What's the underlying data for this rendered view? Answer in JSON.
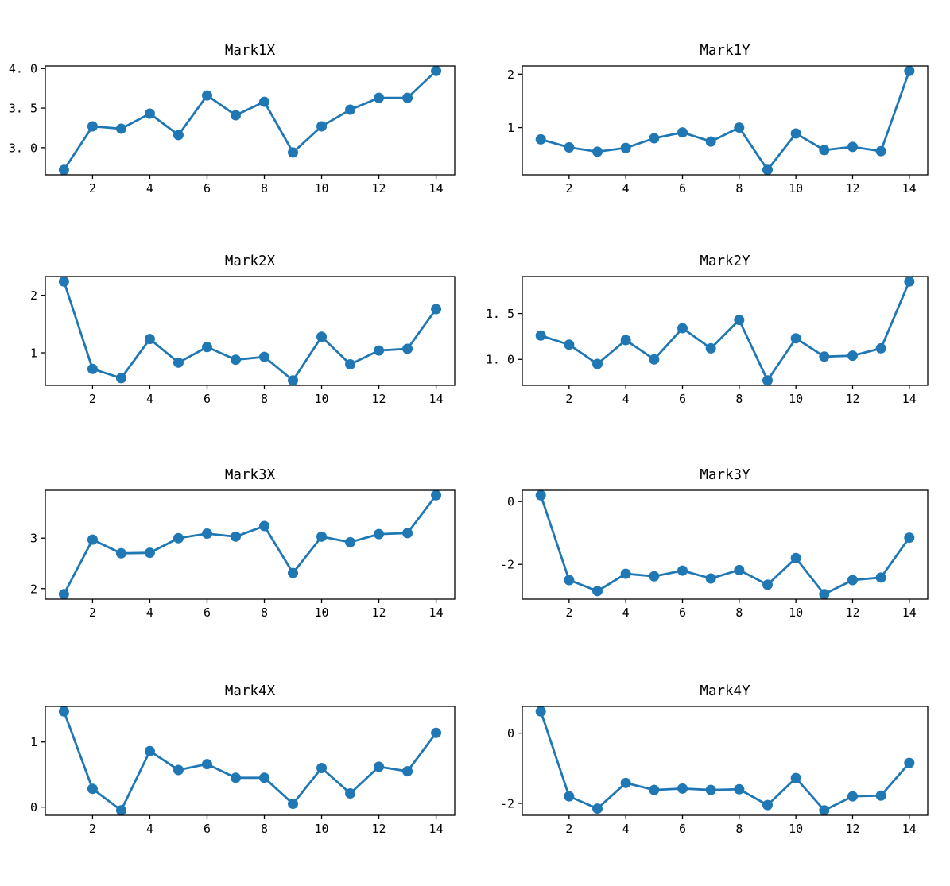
{
  "figure": {
    "background": "#ffffff",
    "series_color": "#1f77b4",
    "spine_color": "#000000"
  },
  "chart_data": [
    {
      "type": "line",
      "title": "Mark1X",
      "x": [
        1,
        2,
        3,
        4,
        5,
        6,
        7,
        8,
        9,
        10,
        11,
        12,
        13,
        14
      ],
      "values": [
        2.72,
        3.27,
        3.24,
        3.43,
        3.16,
        3.66,
        3.41,
        3.58,
        2.94,
        3.27,
        3.48,
        3.63,
        3.63,
        3.97
      ],
      "xlim": [
        0.35,
        14.65
      ],
      "ylim": [
        2.6575,
        4.0325
      ],
      "xticks": [
        2,
        4,
        6,
        8,
        10,
        12,
        14
      ],
      "xtick_labels": [
        "2",
        "4",
        "6",
        "8",
        "10",
        "12",
        "14"
      ],
      "ytick_values": [
        3.0,
        3.5,
        4.0
      ],
      "ytick_labels": [
        "3. 0",
        "3. 5",
        "4. 0"
      ],
      "grid": false,
      "legend": null
    },
    {
      "type": "line",
      "title": "Mark1Y",
      "x": [
        1,
        2,
        3,
        4,
        5,
        6,
        7,
        8,
        9,
        10,
        11,
        12,
        13,
        14
      ],
      "values": [
        0.78,
        0.63,
        0.55,
        0.62,
        0.8,
        0.91,
        0.74,
        1.0,
        0.21,
        0.89,
        0.58,
        0.64,
        0.56,
        2.06
      ],
      "xlim": [
        0.35,
        14.65
      ],
      "ylim": [
        0.1175,
        2.1525
      ],
      "xticks": [
        2,
        4,
        6,
        8,
        10,
        12,
        14
      ],
      "xtick_labels": [
        "2",
        "4",
        "6",
        "8",
        "10",
        "12",
        "14"
      ],
      "ytick_values": [
        1,
        2
      ],
      "ytick_labels": [
        "1",
        "2"
      ],
      "grid": false,
      "legend": null
    },
    {
      "type": "line",
      "title": "Mark2X",
      "x": [
        1,
        2,
        3,
        4,
        5,
        6,
        7,
        8,
        9,
        10,
        11,
        12,
        13,
        14
      ],
      "values": [
        2.24,
        0.72,
        0.56,
        1.24,
        0.83,
        1.1,
        0.88,
        0.93,
        0.52,
        1.28,
        0.8,
        1.04,
        1.07,
        1.76
      ],
      "xlim": [
        0.35,
        14.65
      ],
      "ylim": [
        0.434,
        2.326
      ],
      "xticks": [
        2,
        4,
        6,
        8,
        10,
        12,
        14
      ],
      "xtick_labels": [
        "2",
        "4",
        "6",
        "8",
        "10",
        "12",
        "14"
      ],
      "ytick_values": [
        1,
        2
      ],
      "ytick_labels": [
        "1",
        "2"
      ],
      "grid": false,
      "legend": null
    },
    {
      "type": "line",
      "title": "Mark2Y",
      "x": [
        1,
        2,
        3,
        4,
        5,
        6,
        7,
        8,
        9,
        10,
        11,
        12,
        13,
        14
      ],
      "values": [
        1.26,
        1.16,
        0.95,
        1.21,
        1.0,
        1.34,
        1.12,
        1.43,
        0.77,
        1.23,
        1.03,
        1.04,
        1.12,
        1.85
      ],
      "xlim": [
        0.35,
        14.65
      ],
      "ylim": [
        0.716,
        1.904
      ],
      "xticks": [
        2,
        4,
        6,
        8,
        10,
        12,
        14
      ],
      "xtick_labels": [
        "2",
        "4",
        "6",
        "8",
        "10",
        "12",
        "14"
      ],
      "ytick_values": [
        1.0,
        1.5
      ],
      "ytick_labels": [
        "1. 0",
        "1. 5"
      ],
      "grid": false,
      "legend": null
    },
    {
      "type": "line",
      "title": "Mark3X",
      "x": [
        1,
        2,
        3,
        4,
        5,
        6,
        7,
        8,
        9,
        10,
        11,
        12,
        13,
        14
      ],
      "values": [
        1.89,
        2.97,
        2.7,
        2.71,
        3.0,
        3.09,
        3.03,
        3.24,
        2.31,
        3.03,
        2.92,
        3.08,
        3.1,
        3.85
      ],
      "xlim": [
        0.35,
        14.65
      ],
      "ylim": [
        1.792,
        3.948
      ],
      "xticks": [
        2,
        4,
        6,
        8,
        10,
        12,
        14
      ],
      "xtick_labels": [
        "2",
        "4",
        "6",
        "8",
        "10",
        "12",
        "14"
      ],
      "ytick_values": [
        2,
        3
      ],
      "ytick_labels": [
        "2",
        "3"
      ],
      "grid": false,
      "legend": null
    },
    {
      "type": "line",
      "title": "Mark3Y",
      "x": [
        1,
        2,
        3,
        4,
        5,
        6,
        7,
        8,
        9,
        10,
        11,
        12,
        13,
        14
      ],
      "values": [
        0.2,
        -2.5,
        -2.85,
        -2.3,
        -2.38,
        -2.2,
        -2.45,
        -2.18,
        -2.65,
        -1.8,
        -2.95,
        -2.5,
        -2.42,
        -1.15
      ],
      "xlim": [
        0.35,
        14.65
      ],
      "ylim": [
        -3.1075,
        0.3575
      ],
      "xticks": [
        2,
        4,
        6,
        8,
        10,
        12,
        14
      ],
      "xtick_labels": [
        "2",
        "4",
        "6",
        "8",
        "10",
        "12",
        "14"
      ],
      "ytick_values": [
        -2,
        0
      ],
      "ytick_labels": [
        "-2",
        "0"
      ],
      "grid": false,
      "legend": null
    },
    {
      "type": "line",
      "title": "Mark4X",
      "x": [
        1,
        2,
        3,
        4,
        5,
        6,
        7,
        8,
        9,
        10,
        11,
        12,
        13,
        14
      ],
      "values": [
        1.47,
        0.28,
        -0.05,
        0.86,
        0.57,
        0.66,
        0.45,
        0.45,
        0.05,
        0.6,
        0.21,
        0.62,
        0.55,
        1.14
      ],
      "xlim": [
        0.35,
        14.65
      ],
      "ylim": [
        -0.126,
        1.546
      ],
      "xticks": [
        2,
        4,
        6,
        8,
        10,
        12,
        14
      ],
      "xtick_labels": [
        "2",
        "4",
        "6",
        "8",
        "10",
        "12",
        "14"
      ],
      "ytick_values": [
        0,
        1
      ],
      "ytick_labels": [
        "0",
        "1"
      ],
      "grid": false,
      "legend": null
    },
    {
      "type": "line",
      "title": "Mark4Y",
      "x": [
        1,
        2,
        3,
        4,
        5,
        6,
        7,
        8,
        9,
        10,
        11,
        12,
        13,
        14
      ],
      "values": [
        0.62,
        -1.8,
        -2.15,
        -1.42,
        -1.62,
        -1.58,
        -1.62,
        -1.6,
        -2.05,
        -1.28,
        -2.2,
        -1.8,
        -1.78,
        -0.85
      ],
      "xlim": [
        0.35,
        14.65
      ],
      "ylim": [
        -2.341,
        0.761
      ],
      "xticks": [
        2,
        4,
        6,
        8,
        10,
        12,
        14
      ],
      "xtick_labels": [
        "2",
        "4",
        "6",
        "8",
        "10",
        "12",
        "14"
      ],
      "ytick_values": [
        -2,
        0
      ],
      "ytick_labels": [
        "-2",
        "0"
      ],
      "grid": false,
      "legend": null
    }
  ]
}
